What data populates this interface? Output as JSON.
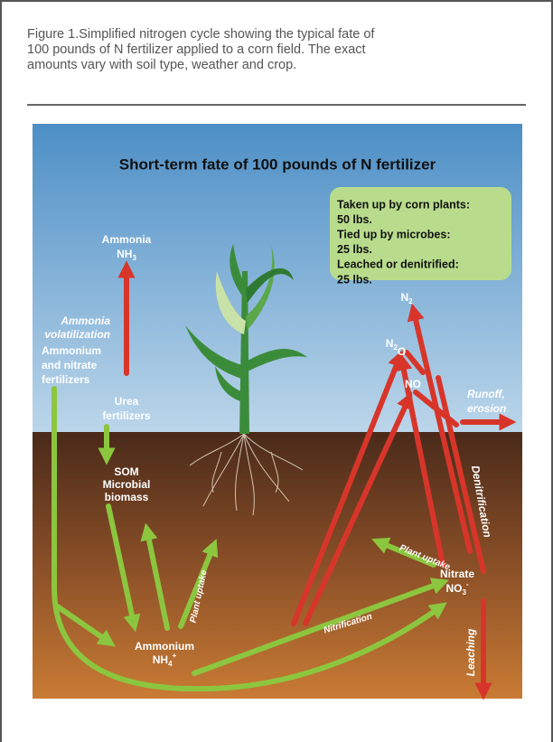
{
  "caption": {
    "lines": [
      "Figure 1.Simplified nitrogen cycle showing the typical fate of",
      "100 pounds of N fertilizer applied to a corn field. The exact",
      "amounts vary with soil type, weather and crop."
    ]
  },
  "figure": {
    "title": "Short-term fate of 100 pounds of N fertilizer",
    "summary": [
      "Taken up by corn plants:",
      "50 lbs.",
      "Tied up by microbes:",
      "25 lbs.",
      "Leached or denitrified:",
      "25 lbs."
    ],
    "labels": {
      "ammonia": "Ammonia",
      "nh3": {
        "base": "NH",
        "sub": "3"
      },
      "volatilization": [
        "Ammonia",
        "volatilization"
      ],
      "fertilizers": [
        "Ammonium",
        "and nitrate",
        "fertilizers"
      ],
      "urea": [
        "Urea",
        "fertilizers"
      ],
      "som": [
        "SOM",
        "Microbial",
        "biomass"
      ],
      "ammonium": "Ammonium",
      "nh4": {
        "base": "NH",
        "sub": "4",
        "sup": "+"
      },
      "plant_uptake_left": "Plant uptake",
      "nitrification": "Nitrification",
      "plant_uptake_right": "Plant uptake",
      "nitrate": "Nitrate",
      "no3": {
        "base": "NO",
        "sub": "3",
        "sup": "-"
      },
      "leaching": "Leaching",
      "denitrification": "Denitrification",
      "n2": {
        "base": "N",
        "sub": "2"
      },
      "n2o": {
        "base": "N",
        "sub": "2",
        "after": "O"
      },
      "no": "NO",
      "runoff": [
        "Runoff,",
        "erosion"
      ]
    }
  }
}
